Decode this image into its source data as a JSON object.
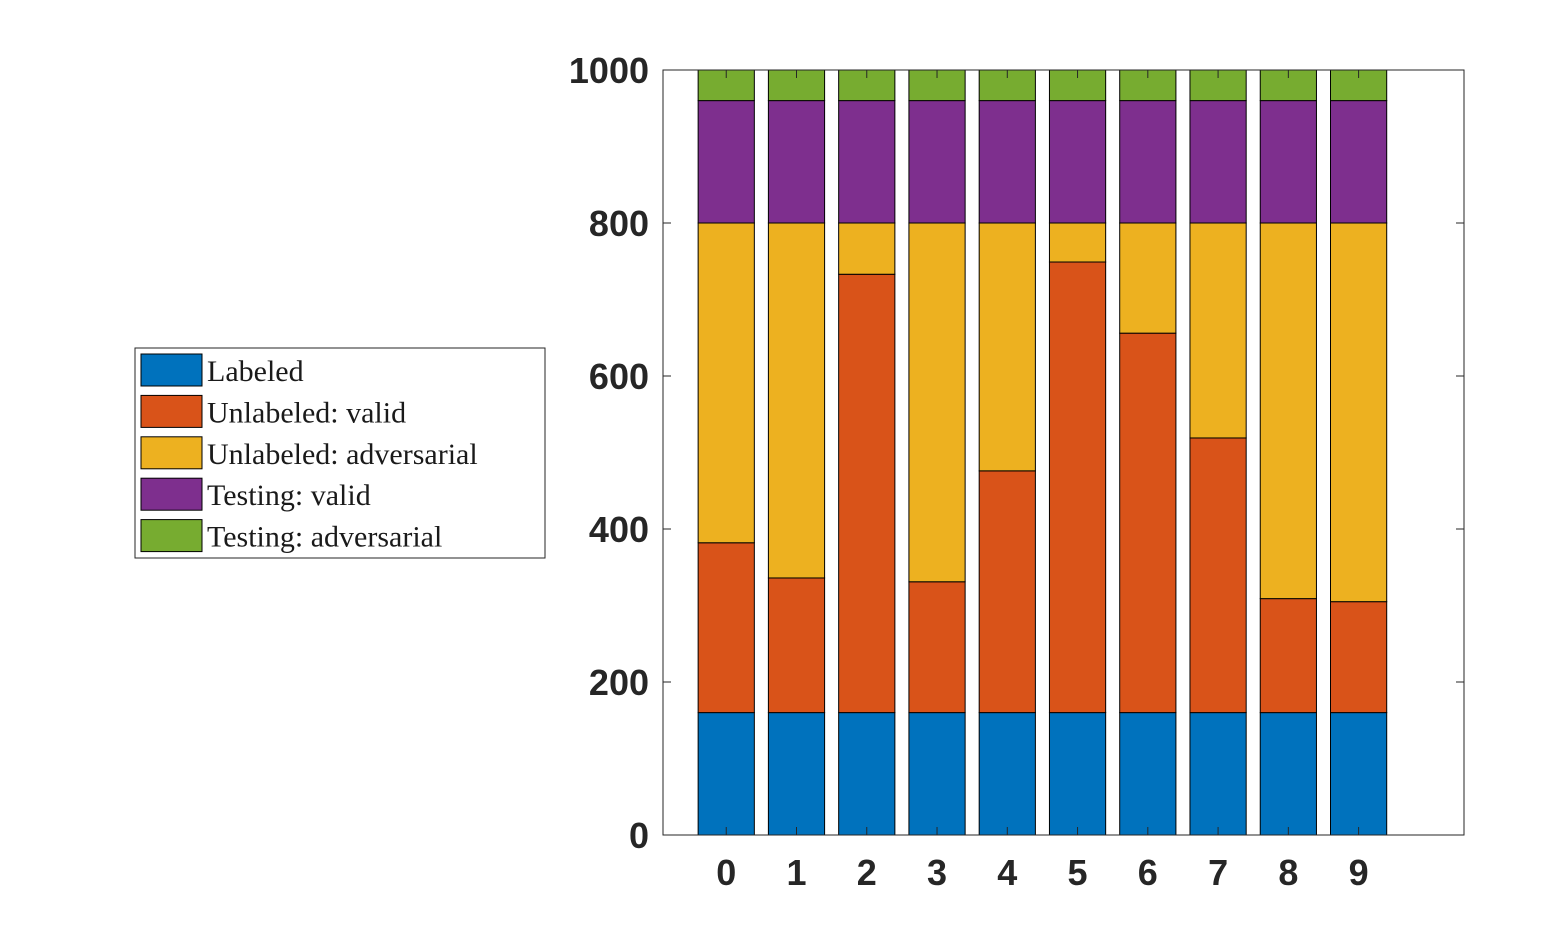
{
  "chart_data": {
    "type": "bar",
    "stacked": true,
    "categories": [
      "0",
      "1",
      "2",
      "3",
      "4",
      "5",
      "6",
      "7",
      "8",
      "9"
    ],
    "series": [
      {
        "name": "Labeled",
        "color": "#0072BD",
        "values": [
          160,
          160,
          160,
          160,
          160,
          160,
          160,
          160,
          160,
          160
        ]
      },
      {
        "name": "Unlabeled: valid",
        "color": "#D95319",
        "values": [
          222,
          176,
          573,
          171,
          316,
          589,
          496,
          359,
          149,
          145
        ]
      },
      {
        "name": "Unlabeled: adversarial",
        "color": "#EDB120",
        "values": [
          418,
          464,
          67,
          469,
          324,
          51,
          144,
          281,
          491,
          495
        ]
      },
      {
        "name": "Testing: valid",
        "color": "#7E2F8E",
        "values": [
          160,
          160,
          160,
          160,
          160,
          160,
          160,
          160,
          160,
          160
        ]
      },
      {
        "name": "Testing: adversarial",
        "color": "#77AC30",
        "values": [
          40,
          40,
          40,
          40,
          40,
          40,
          40,
          40,
          40,
          40
        ]
      }
    ],
    "yticks": [
      "0",
      "200",
      "400",
      "600",
      "800",
      "1000"
    ],
    "ylim": [
      0,
      1000
    ],
    "xlim": [
      -0.9,
      10.5
    ],
    "grid": false,
    "legend_position": "outside-left"
  }
}
